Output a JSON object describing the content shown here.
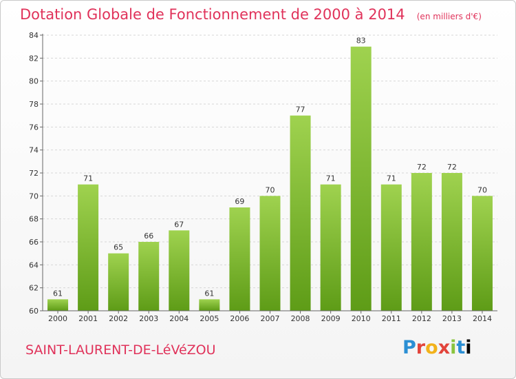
{
  "header": {
    "title": "Dotation Globale de Fonctionnement de 2000 à 2014",
    "unit": "(en milliers d'€)"
  },
  "footer": {
    "commune": "SAINT-LAURENT-DE-LéVéZOU",
    "logo_letters": [
      "P",
      "r",
      "o",
      "x",
      "i",
      "t",
      "i"
    ]
  },
  "colors": {
    "bar_top": "#9fd24f",
    "bar_bottom": "#5e9c17",
    "title": "#e0325a",
    "grid": "#d6d6d6"
  },
  "chart_data": {
    "type": "bar",
    "title": "Dotation Globale de Fonctionnement de 2000 à 2014",
    "xlabel": "",
    "ylabel": "",
    "categories": [
      "2000",
      "2001",
      "2002",
      "2003",
      "2004",
      "2005",
      "2006",
      "2007",
      "2008",
      "2009",
      "2010",
      "2011",
      "2012",
      "2013",
      "2014"
    ],
    "values": [
      61,
      71,
      65,
      66,
      67,
      61,
      69,
      70,
      77,
      71,
      83,
      71,
      72,
      72,
      70
    ],
    "ylim": [
      60,
      84
    ],
    "yticks": [
      60,
      62,
      64,
      66,
      68,
      70,
      72,
      74,
      76,
      78,
      80,
      82,
      84
    ],
    "grid": true,
    "legend": "none"
  }
}
